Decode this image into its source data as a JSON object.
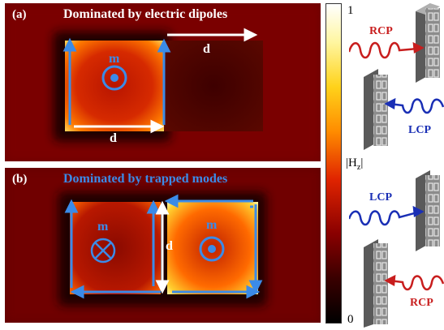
{
  "panel_a": {
    "label": "(a)",
    "title": "Dominated by electric dipoles",
    "moment_label": "m",
    "moment_symbol": "out-of-plane",
    "d_label_top": "d",
    "d_label_bottom": "d"
  },
  "panel_b": {
    "label": "(b)",
    "title": "Dominated by trapped modes",
    "moment_label_left": "m",
    "moment_symbol_left": "into-plane",
    "moment_label_right": "m",
    "moment_symbol_right": "out-of-plane",
    "d_label": "d"
  },
  "colorbar": {
    "max": "1",
    "min": "0",
    "quantity": "H",
    "quantity_sub": "z",
    "colormap": "hot"
  },
  "schematic": {
    "rcp_top": "RCP",
    "lcp_top": "LCP",
    "lcp_bottom": "LCP",
    "rcp_bottom": "RCP"
  },
  "colors": {
    "title_a": "#ffffff",
    "title_b": "#3b8be8",
    "arrow_blue": "#3b8be8",
    "arrow_white": "#ffffff",
    "rcp": "#c81e1e",
    "lcp": "#1a2fb5"
  }
}
